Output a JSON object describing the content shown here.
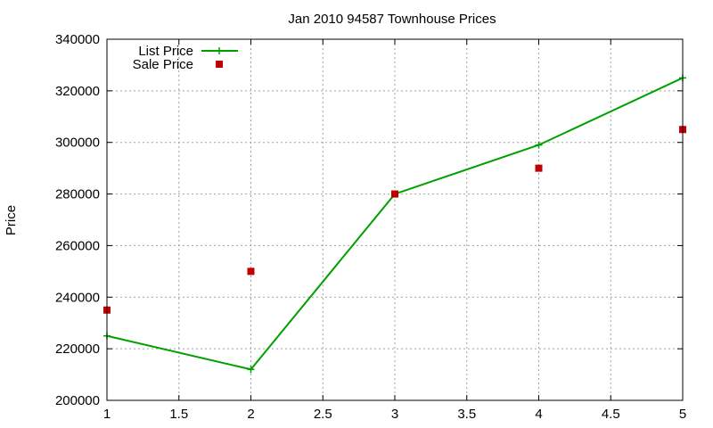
{
  "chart_data": {
    "type": "line",
    "title": "Jan 2010 94587 Townhouse Prices",
    "xlabel": "",
    "ylabel": "Price",
    "xlim": [
      1,
      5
    ],
    "ylim": [
      200000,
      340000
    ],
    "xticks": [
      "1",
      "1.5",
      "2",
      "2.5",
      "3",
      "3.5",
      "4",
      "4.5",
      "5"
    ],
    "yticks": [
      "200000",
      "220000",
      "240000",
      "260000",
      "280000",
      "300000",
      "320000",
      "340000"
    ],
    "grid": true,
    "legend_position": "top-left",
    "series": [
      {
        "name": "List Price",
        "kind": "line",
        "color": "#00a000",
        "x": [
          1,
          2,
          3,
          4,
          5
        ],
        "y": [
          225000,
          212000,
          280000,
          299000,
          325000
        ]
      },
      {
        "name": "Sale Price",
        "kind": "scatter",
        "color": "#c00000",
        "x": [
          1,
          2,
          3,
          4,
          5
        ],
        "y": [
          235000,
          250000,
          280000,
          290000,
          305000
        ]
      }
    ]
  }
}
